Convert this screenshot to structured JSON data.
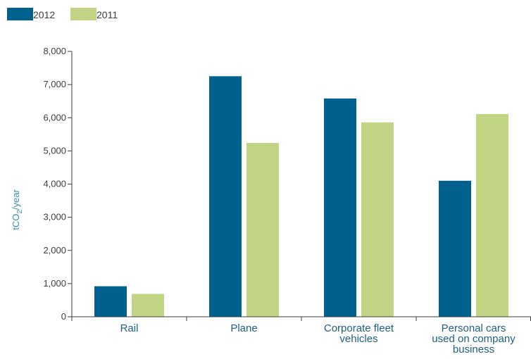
{
  "chart_data": {
    "type": "bar",
    "categories": [
      [
        "Rail"
      ],
      [
        "Plane"
      ],
      [
        "Corporate fleet",
        "vehicles"
      ],
      [
        "Personal cars",
        "used on company",
        "business"
      ]
    ],
    "series": [
      {
        "name": "2012",
        "color": "#00618e",
        "values": [
          920,
          7250,
          6580,
          4100
        ]
      },
      {
        "name": "2011",
        "color": "#c1d584",
        "values": [
          690,
          5240,
          5860,
          6110
        ]
      }
    ],
    "ylabel": {
      "main": "tCO",
      "sub": "2",
      "suffix": "/year"
    },
    "ylim": [
      0,
      8000
    ],
    "yticks": [
      "0",
      "1,000",
      "2,000",
      "3,000",
      "4,000",
      "5,000",
      "6,000",
      "7,000",
      "8,000"
    ],
    "ytick_values": [
      0,
      1000,
      2000,
      3000,
      4000,
      5000,
      6000,
      7000,
      8000
    ],
    "grid": false,
    "legend_position": "top-left",
    "axis_color": "#3c3c3c"
  }
}
